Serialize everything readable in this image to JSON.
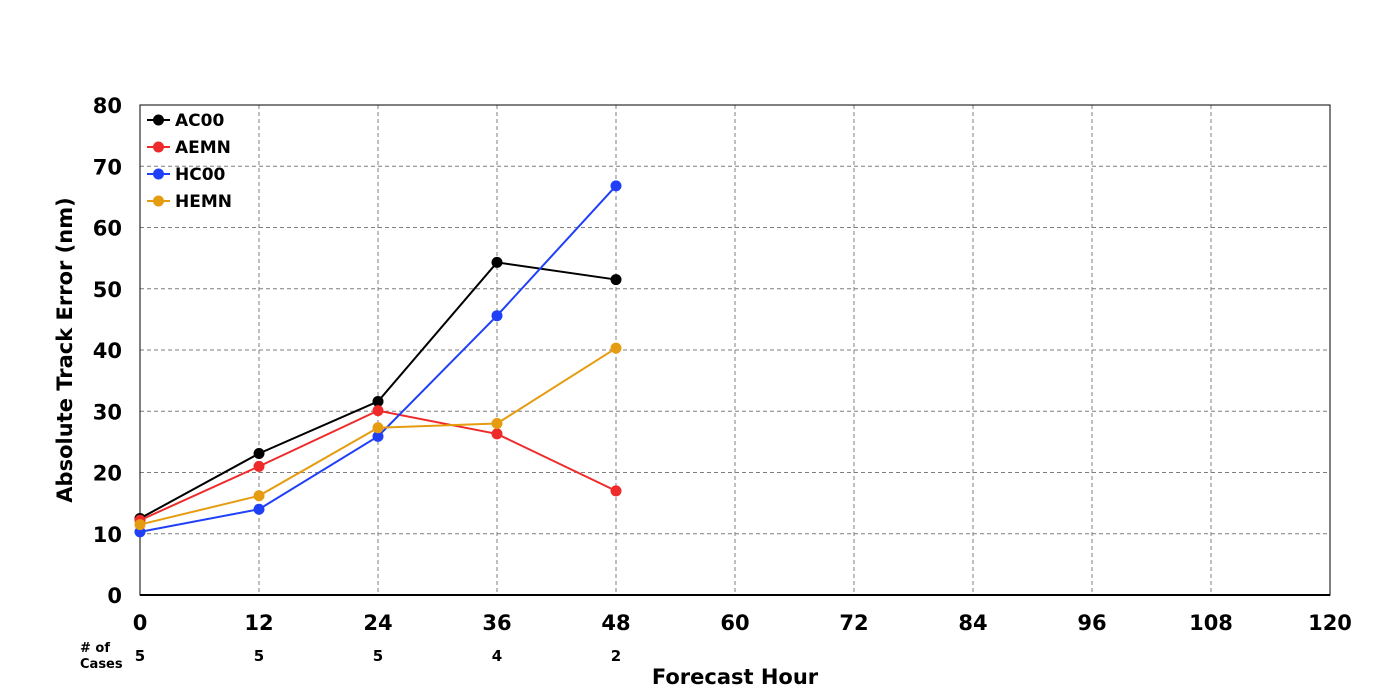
{
  "chart_data": {
    "type": "line",
    "title": "",
    "xlabel": "Forecast Hour",
    "ylabel": "Absolute Track Error (nm)",
    "xlim": [
      0,
      120
    ],
    "ylim": [
      0,
      80
    ],
    "xticks": [
      0,
      12,
      24,
      36,
      48,
      60,
      72,
      84,
      96,
      108,
      120
    ],
    "yticks": [
      0,
      10,
      20,
      30,
      40,
      50,
      60,
      70,
      80
    ],
    "grid": true,
    "legend_position": "top-left",
    "x": [
      0,
      12,
      24,
      36,
      48
    ],
    "series": [
      {
        "name": "AC00",
        "color": "#000000",
        "values": [
          12.5,
          23.1,
          31.6,
          54.3,
          51.5
        ]
      },
      {
        "name": "AEMN",
        "color": "#ee2a2a",
        "values": [
          12.2,
          21.0,
          30.1,
          26.3,
          17.0
        ]
      },
      {
        "name": "HC00",
        "color": "#2040f8",
        "values": [
          10.3,
          14.0,
          25.9,
          45.6,
          66.8
        ]
      },
      {
        "name": "HEMN",
        "color": "#e59c10",
        "values": [
          11.5,
          16.2,
          27.3,
          28.0,
          40.3
        ]
      }
    ],
    "cases_label_line1": "# of",
    "cases_label_line2": "Cases",
    "cases": [
      5,
      5,
      5,
      4,
      2
    ]
  }
}
